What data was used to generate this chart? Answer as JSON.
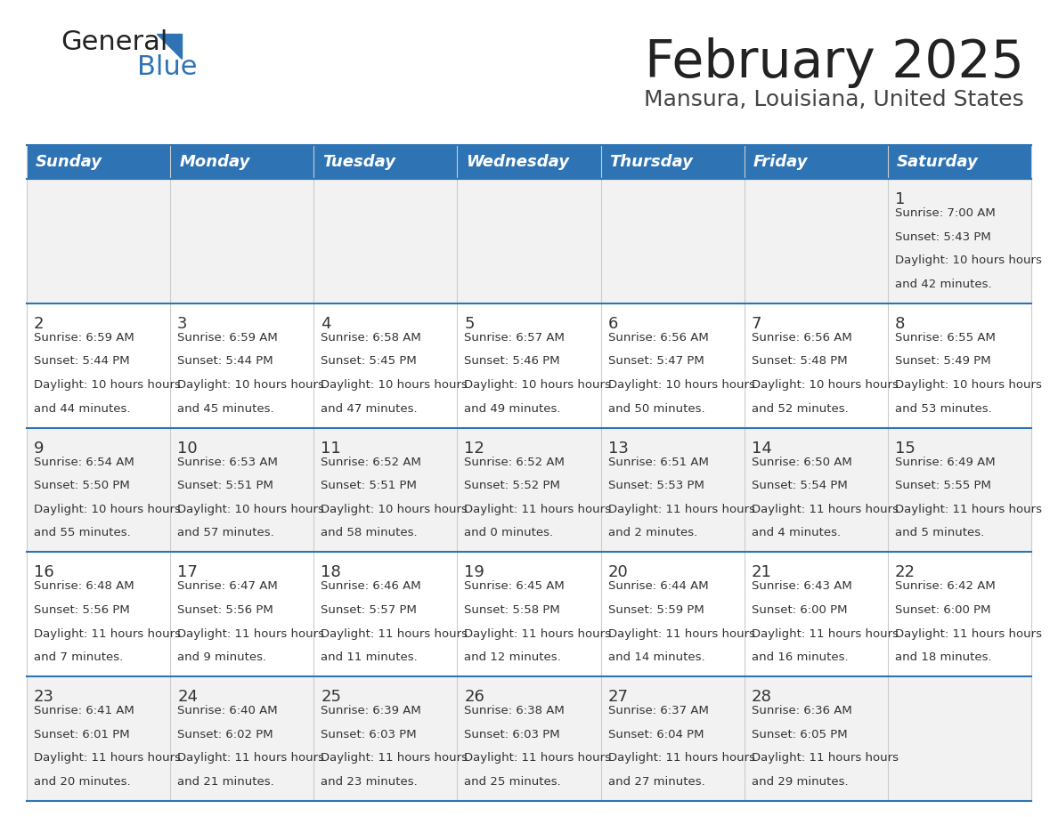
{
  "title": "February 2025",
  "subtitle": "Mansura, Louisiana, United States",
  "header_bg": "#2E74B5",
  "header_text_color": "#FFFFFF",
  "day_names": [
    "Sunday",
    "Monday",
    "Tuesday",
    "Wednesday",
    "Thursday",
    "Friday",
    "Saturday"
  ],
  "row_bg_even": "#F2F2F2",
  "row_bg_odd": "#FFFFFF",
  "cell_text_color": "#333333",
  "day_num_color": "#333333",
  "divider_color": "#2E74B5",
  "logo_general_color": "#222222",
  "logo_blue_color": "#2E74B5",
  "calendar_data": [
    [
      null,
      null,
      null,
      null,
      null,
      null,
      {
        "day": 1,
        "sunrise": "7:00 AM",
        "sunset": "5:43 PM",
        "daylight": "10 hours and 42 minutes."
      }
    ],
    [
      {
        "day": 2,
        "sunrise": "6:59 AM",
        "sunset": "5:44 PM",
        "daylight": "10 hours and 44 minutes."
      },
      {
        "day": 3,
        "sunrise": "6:59 AM",
        "sunset": "5:44 PM",
        "daylight": "10 hours and 45 minutes."
      },
      {
        "day": 4,
        "sunrise": "6:58 AM",
        "sunset": "5:45 PM",
        "daylight": "10 hours and 47 minutes."
      },
      {
        "day": 5,
        "sunrise": "6:57 AM",
        "sunset": "5:46 PM",
        "daylight": "10 hours and 49 minutes."
      },
      {
        "day": 6,
        "sunrise": "6:56 AM",
        "sunset": "5:47 PM",
        "daylight": "10 hours and 50 minutes."
      },
      {
        "day": 7,
        "sunrise": "6:56 AM",
        "sunset": "5:48 PM",
        "daylight": "10 hours and 52 minutes."
      },
      {
        "day": 8,
        "sunrise": "6:55 AM",
        "sunset": "5:49 PM",
        "daylight": "10 hours and 53 minutes."
      }
    ],
    [
      {
        "day": 9,
        "sunrise": "6:54 AM",
        "sunset": "5:50 PM",
        "daylight": "10 hours and 55 minutes."
      },
      {
        "day": 10,
        "sunrise": "6:53 AM",
        "sunset": "5:51 PM",
        "daylight": "10 hours and 57 minutes."
      },
      {
        "day": 11,
        "sunrise": "6:52 AM",
        "sunset": "5:51 PM",
        "daylight": "10 hours and 58 minutes."
      },
      {
        "day": 12,
        "sunrise": "6:52 AM",
        "sunset": "5:52 PM",
        "daylight": "11 hours and 0 minutes."
      },
      {
        "day": 13,
        "sunrise": "6:51 AM",
        "sunset": "5:53 PM",
        "daylight": "11 hours and 2 minutes."
      },
      {
        "day": 14,
        "sunrise": "6:50 AM",
        "sunset": "5:54 PM",
        "daylight": "11 hours and 4 minutes."
      },
      {
        "day": 15,
        "sunrise": "6:49 AM",
        "sunset": "5:55 PM",
        "daylight": "11 hours and 5 minutes."
      }
    ],
    [
      {
        "day": 16,
        "sunrise": "6:48 AM",
        "sunset": "5:56 PM",
        "daylight": "11 hours and 7 minutes."
      },
      {
        "day": 17,
        "sunrise": "6:47 AM",
        "sunset": "5:56 PM",
        "daylight": "11 hours and 9 minutes."
      },
      {
        "day": 18,
        "sunrise": "6:46 AM",
        "sunset": "5:57 PM",
        "daylight": "11 hours and 11 minutes."
      },
      {
        "day": 19,
        "sunrise": "6:45 AM",
        "sunset": "5:58 PM",
        "daylight": "11 hours and 12 minutes."
      },
      {
        "day": 20,
        "sunrise": "6:44 AM",
        "sunset": "5:59 PM",
        "daylight": "11 hours and 14 minutes."
      },
      {
        "day": 21,
        "sunrise": "6:43 AM",
        "sunset": "6:00 PM",
        "daylight": "11 hours and 16 minutes."
      },
      {
        "day": 22,
        "sunrise": "6:42 AM",
        "sunset": "6:00 PM",
        "daylight": "11 hours and 18 minutes."
      }
    ],
    [
      {
        "day": 23,
        "sunrise": "6:41 AM",
        "sunset": "6:01 PM",
        "daylight": "11 hours and 20 minutes."
      },
      {
        "day": 24,
        "sunrise": "6:40 AM",
        "sunset": "6:02 PM",
        "daylight": "11 hours and 21 minutes."
      },
      {
        "day": 25,
        "sunrise": "6:39 AM",
        "sunset": "6:03 PM",
        "daylight": "11 hours and 23 minutes."
      },
      {
        "day": 26,
        "sunrise": "6:38 AM",
        "sunset": "6:03 PM",
        "daylight": "11 hours and 25 minutes."
      },
      {
        "day": 27,
        "sunrise": "6:37 AM",
        "sunset": "6:04 PM",
        "daylight": "11 hours and 27 minutes."
      },
      {
        "day": 28,
        "sunrise": "6:36 AM",
        "sunset": "6:05 PM",
        "daylight": "11 hours and 29 minutes."
      },
      null
    ]
  ]
}
